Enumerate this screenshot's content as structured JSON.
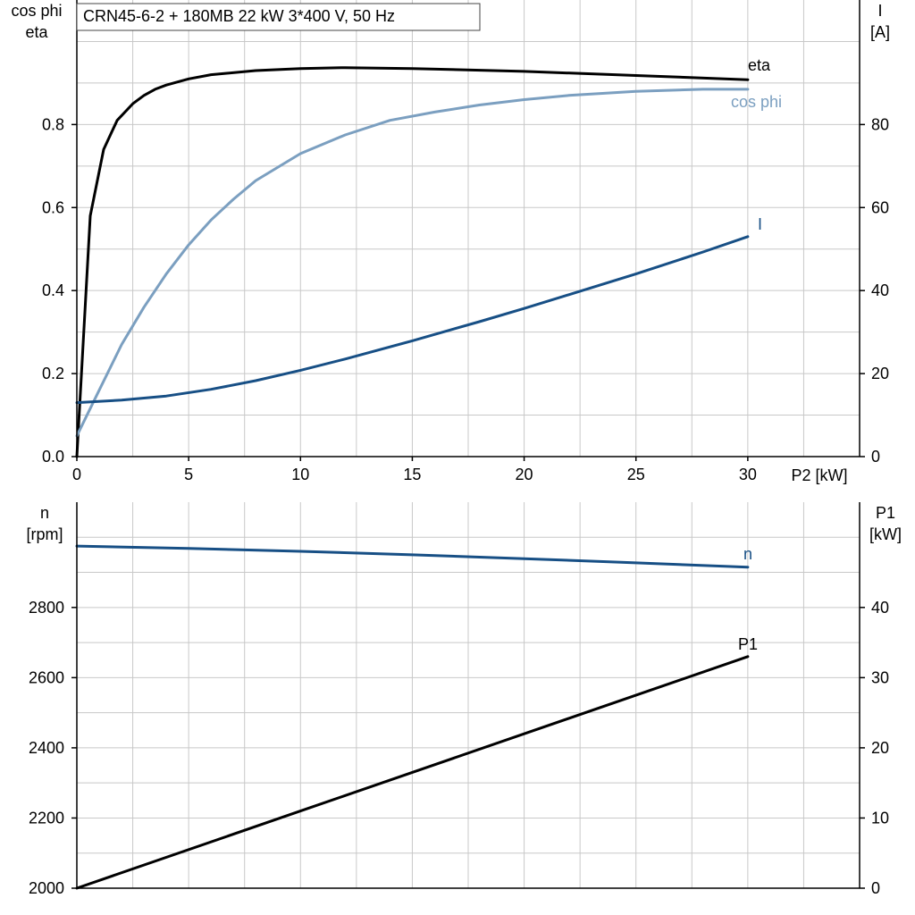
{
  "title": "CRN45-6-2 + 180MB   22 kW   3*400 V, 50 Hz",
  "colors": {
    "eta": "#000000",
    "cosphi": "#7b9fc0",
    "current": "#174f85",
    "speed": "#174f85",
    "p1": "#000000",
    "grid": "#c8c8c8",
    "axis": "#000000"
  },
  "chart_data": [
    {
      "type": "line",
      "xlabel": "P2 [kW]",
      "ylabel_left": [
        "cos phi",
        "eta"
      ],
      "ylabel_right": [
        "I",
        "[A]"
      ],
      "x_ticks": [
        "0",
        "5",
        "10",
        "15",
        "20",
        "25",
        "30"
      ],
      "xlim": [
        0,
        35
      ],
      "ylim_left": [
        0,
        1.1
      ],
      "ylim_right": [
        0,
        110
      ],
      "y_ticks_left": [
        "0.0",
        "0.2",
        "0.4",
        "0.6",
        "0.8"
      ],
      "y_ticks_right": [
        "0",
        "20",
        "40",
        "60",
        "80"
      ],
      "grid": true,
      "series": [
        {
          "name": "eta",
          "axis": "left",
          "color_key": "eta",
          "x": [
            0,
            0.6,
            1.2,
            1.8,
            2.5,
            3,
            3.5,
            4,
            5,
            6,
            8,
            10,
            12,
            15,
            20,
            25,
            30
          ],
          "y": [
            0,
            0.58,
            0.74,
            0.81,
            0.85,
            0.87,
            0.885,
            0.895,
            0.91,
            0.92,
            0.93,
            0.935,
            0.937,
            0.935,
            0.928,
            0.918,
            0.908
          ]
        },
        {
          "name": "cos phi",
          "axis": "left",
          "color_key": "cosphi",
          "x": [
            0,
            1,
            2,
            3,
            4,
            5,
            6,
            7,
            8,
            10,
            12,
            14,
            16,
            18,
            20,
            22,
            25,
            28,
            30
          ],
          "y": [
            0.05,
            0.16,
            0.27,
            0.36,
            0.44,
            0.51,
            0.57,
            0.62,
            0.665,
            0.73,
            0.775,
            0.81,
            0.83,
            0.847,
            0.86,
            0.87,
            0.88,
            0.885,
            0.885
          ]
        },
        {
          "name": "I",
          "axis": "right",
          "color_key": "current",
          "x": [
            0,
            2,
            4,
            6,
            8,
            10,
            12,
            15,
            18,
            20,
            22,
            25,
            28,
            30
          ],
          "y": [
            13,
            13.6,
            14.6,
            16.2,
            18.3,
            20.8,
            23.5,
            27.9,
            32.5,
            35.7,
            39,
            44,
            49.3,
            53
          ]
        }
      ]
    },
    {
      "type": "line",
      "xlabel": "",
      "ylabel_left": [
        "n",
        "[rpm]"
      ],
      "ylabel_right": [
        "P1",
        "[kW]"
      ],
      "x_ticks": [],
      "xlim": [
        0,
        35
      ],
      "ylim_left": [
        2000,
        3100
      ],
      "ylim_right": [
        0,
        55
      ],
      "y_ticks_left": [
        "2000",
        "2200",
        "2400",
        "2600",
        "2800"
      ],
      "y_ticks_right": [
        "0",
        "10",
        "20",
        "30",
        "40"
      ],
      "grid": true,
      "series": [
        {
          "name": "n",
          "axis": "left",
          "color_key": "speed",
          "x": [
            0,
            5,
            10,
            15,
            20,
            25,
            30
          ],
          "y": [
            2975,
            2968,
            2960,
            2950,
            2939,
            2927,
            2915
          ]
        },
        {
          "name": "P1",
          "axis": "right",
          "color_key": "p1",
          "x": [
            0,
            10,
            20,
            30
          ],
          "y": [
            0,
            11,
            22,
            33
          ]
        }
      ]
    }
  ]
}
